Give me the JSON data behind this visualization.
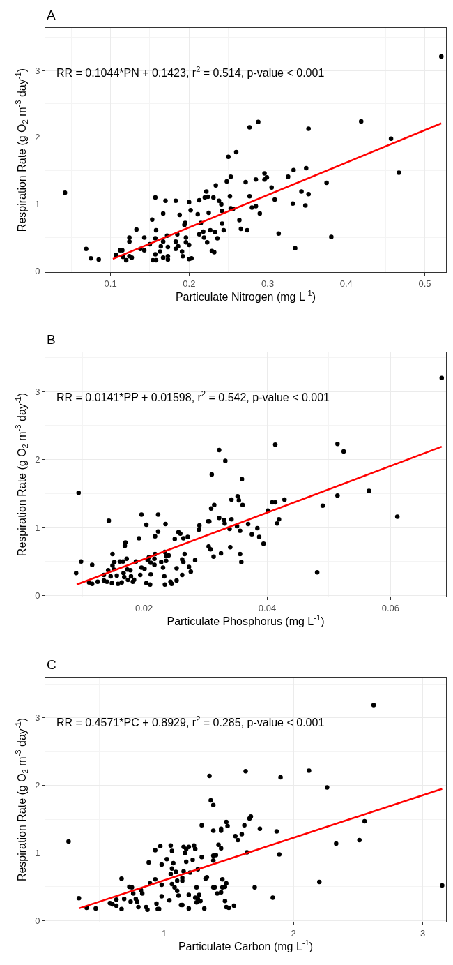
{
  "chart_data": [
    {
      "type": "scatter",
      "title": "A",
      "annotations": [
        "RR = 0.1044*PN + 0.1423, r$^{2}$ = 0.514, p-value < 0.001"
      ],
      "xlabel": "Particulate Nitrogen (mg L$^{-1}$)",
      "ylabel": "Respiration Rate (g O$_{2}$ m$^{-3}$ day$^{-1}$)",
      "xlim": [
        0.017,
        0.527
      ],
      "xticks": [
        0.1,
        0.2,
        0.3,
        0.4,
        0.5
      ],
      "ylim": [
        -0.02,
        3.64
      ],
      "yticks": [
        0,
        1,
        2,
        3
      ],
      "grid": true,
      "series": [
        {
          "marker": "circle",
          "color": "#000000",
          "x": [
            0.042,
            0.069,
            0.075,
            0.085,
            0.107,
            0.112,
            0.115,
            0.116,
            0.12,
            0.124,
            0.127,
            0.124,
            0.124,
            0.133,
            0.138,
            0.143,
            0.143,
            0.15,
            0.153,
            0.154,
            0.158,
            0.157,
            0.158,
            0.157,
            0.157,
            0.164,
            0.163,
            0.167,
            0.167,
            0.17,
            0.172,
            0.173,
            0.167,
            0.173,
            0.173,
            0.183,
            0.183,
            0.185,
            0.183,
            0.186,
            0.188,
            0.191,
            0.192,
            0.194,
            0.195,
            0.196,
            0.196,
            0.2,
            0.2,
            0.203,
            0.2,
            0.202,
            0.211,
            0.213,
            0.215,
            0.213,
            0.218,
            0.219,
            0.222,
            0.22,
            0.224,
            0.231,
            0.225,
            0.223,
            0.227,
            0.229,
            0.232,
            0.233,
            0.236,
            0.234,
            0.238,
            0.241,
            0.242,
            0.242,
            0.244,
            0.248,
            0.25,
            0.252,
            0.253,
            0.253,
            0.256,
            0.26,
            0.264,
            0.266,
            0.272,
            0.274,
            0.277,
            0.277,
            0.288,
            0.28,
            0.285,
            0.29,
            0.285,
            0.296,
            0.296,
            0.299,
            0.305,
            0.309,
            0.314,
            0.326,
            0.333,
            0.332,
            0.335,
            0.343,
            0.348,
            0.349,
            0.352,
            0.352,
            0.375,
            0.381,
            0.419,
            0.457,
            0.467,
            0.521
          ],
          "values": [
            1.17,
            0.33,
            0.19,
            0.17,
            0.24,
            0.31,
            0.31,
            0.21,
            0.16,
            0.22,
            0.2,
            0.5,
            0.44,
            0.62,
            0.33,
            0.5,
            0.31,
            0.4,
            0.77,
            0.16,
            0.16,
            0.49,
            0.61,
            0.25,
            1.1,
            0.37,
            0.29,
            0.44,
            0.86,
            1.05,
            0.53,
            0.36,
            0.2,
            0.17,
            0.22,
            1.05,
            0.44,
            0.55,
            0.33,
            0.37,
            0.84,
            0.29,
            0.22,
            0.69,
            0.72,
            0.5,
            0.43,
            0.39,
            0.18,
            0.19,
            1.03,
            0.91,
            0.85,
            1.06,
            0.72,
            0.55,
            0.59,
            0.5,
            1.19,
            1.1,
            1.11,
            1.1,
            0.87,
            0.43,
            0.61,
            0.3,
            0.28,
            0.58,
            0.49,
            1.28,
            1.05,
            1.0,
            0.9,
            0.71,
            0.61,
            1.34,
            1.71,
            1.12,
            1.41,
            0.94,
            0.93,
            1.78,
            0.76,
            0.63,
            1.33,
            0.61,
            2.15,
            1.12,
            2.23,
            0.95,
            0.97,
            0.86,
            1.37,
            1.46,
            1.37,
            1.4,
            1.25,
            1.07,
            0.56,
            1.41,
            1.51,
            1.01,
            0.34,
            1.19,
            0.98,
            1.54,
            2.13,
            1.15,
            1.32,
            0.51,
            2.24,
            1.98,
            1.47,
            3.21
          ]
        },
        {
          "type": "line",
          "marker": "none",
          "color": "#ff0000",
          "line_style": "solid",
          "x": [
            0.103,
            0.521
          ],
          "values": [
            0.18,
            2.21
          ]
        }
      ]
    },
    {
      "type": "scatter",
      "title": "B",
      "annotations": [
        "RR = 0.0141*PP + 0.01598, r$^{2}$ = 0.542, p-value < 0.001"
      ],
      "xlabel": "Particulate Phosphorus (mg L$^{-1}$)",
      "ylabel": "Respiration Rate (g O$_{2}$ m$^{-3}$ day$^{-1}$)",
      "xlim": [
        0.004,
        0.069
      ],
      "xticks": [
        0.02,
        0.04,
        0.06
      ],
      "ylim": [
        -0.02,
        3.58
      ],
      "yticks": [
        0,
        1,
        2,
        3
      ],
      "grid": true,
      "series": [
        {
          "marker": "circle",
          "color": "#000000",
          "x": [
            0.009,
            0.0094,
            0.0098,
            0.0111,
            0.0116,
            0.0116,
            0.0125,
            0.0135,
            0.0135,
            0.014,
            0.0142,
            0.0143,
            0.0146,
            0.0148,
            0.0149,
            0.0149,
            0.0152,
            0.0151,
            0.0156,
            0.0158,
            0.0161,
            0.0164,
            0.0166,
            0.0167,
            0.0168,
            0.0169,
            0.017,
            0.0172,
            0.0173,
            0.0174,
            0.0178,
            0.0179,
            0.0182,
            0.0184,
            0.0187,
            0.0192,
            0.0194,
            0.0196,
            0.0196,
            0.0201,
            0.0204,
            0.0204,
            0.0206,
            0.0208,
            0.021,
            0.0211,
            0.0211,
            0.0217,
            0.0217,
            0.0218,
            0.0218,
            0.0223,
            0.0223,
            0.0228,
            0.0231,
            0.0233,
            0.0234,
            0.0234,
            0.0236,
            0.0236,
            0.0235,
            0.024,
            0.0243,
            0.0245,
            0.025,
            0.0253,
            0.0253,
            0.0256,
            0.0259,
            0.0262,
            0.0262,
            0.0264,
            0.0264,
            0.0266,
            0.0271,
            0.0273,
            0.0276,
            0.0283,
            0.0289,
            0.029,
            0.0304,
            0.0306,
            0.0305,
            0.0308,
            0.0313,
            0.0309,
            0.0314,
            0.031,
            0.0322,
            0.0332,
            0.0322,
            0.0325,
            0.033,
            0.0331,
            0.0339,
            0.034,
            0.0342,
            0.0342,
            0.0352,
            0.0354,
            0.0351,
            0.0356,
            0.0359,
            0.036,
            0.0356,
            0.0358,
            0.0369,
            0.0384,
            0.0387,
            0.0394,
            0.0375,
            0.0401,
            0.0408,
            0.0413,
            0.0413,
            0.0416,
            0.0419,
            0.0428,
            0.0481,
            0.049,
            0.0514,
            0.0524,
            0.0514,
            0.0565,
            0.0611,
            0.0683
          ],
          "values": [
            0.33,
            1.51,
            0.5,
            0.19,
            0.45,
            0.17,
            0.2,
            0.3,
            0.22,
            0.2,
            0.37,
            1.1,
            0.28,
            0.18,
            0.44,
            0.61,
            0.49,
            0.38,
            0.29,
            0.17,
            0.5,
            0.19,
            0.5,
            0.33,
            0.27,
            0.73,
            0.78,
            0.54,
            0.38,
            0.23,
            0.37,
            0.28,
            0.2,
            0.23,
            0.5,
            0.84,
            0.3,
            1.19,
            0.41,
            0.39,
            1.04,
            0.18,
            0.52,
            0.56,
            0.16,
            0.31,
            0.48,
            0.54,
            0.45,
            0.61,
            0.87,
            1.19,
            0.94,
            0.49,
            0.41,
            0.28,
            0.16,
            0.64,
            0.58,
            0.51,
            1.05,
            0.59,
            0.2,
            0.17,
            0.83,
            0.4,
            0.22,
            0.93,
            0.91,
            0.3,
            0.53,
            0.49,
            0.84,
            0.61,
            0.86,
            0.42,
            0.35,
            0.52,
            0.97,
            1.03,
            1.09,
            1.09,
            0.72,
            0.68,
            0.57,
            1.28,
            1.33,
            1.78,
            2.14,
            1.98,
            1.14,
            0.62,
            1.11,
            1.06,
            0.98,
            0.71,
            1.41,
            1.12,
            1.46,
            1.4,
            1.02,
            0.95,
            1.71,
            1.33,
            0.61,
            0.49,
            1.05,
            0.99,
            0.86,
            0.76,
            0.9,
            1.25,
            1.37,
            1.37,
            2.22,
            1.06,
            1.12,
            1.41,
            0.34,
            1.32,
            2.23,
            2.12,
            1.47,
            1.54,
            1.16,
            3.2
          ]
        },
        {
          "type": "line",
          "marker": "none",
          "color": "#ff0000",
          "line_style": "solid",
          "x": [
            0.0091,
            0.0683
          ],
          "values": [
            0.16,
            2.19
          ]
        }
      ]
    },
    {
      "type": "scatter",
      "title": "C",
      "annotations": [
        "RR = 0.4571*PC + 0.8929, r$^{2}$ = 0.285, p-value < 0.001"
      ],
      "xlabel": "Particulate Carbon (mg L$^{-1}$)",
      "ylabel": "Respiration Rate (g O$_{2}$ m$^{-3}$ day$^{-1}$)",
      "xlim": [
        0.08,
        3.18
      ],
      "xticks": [
        1,
        2,
        3
      ],
      "ylim": [
        -0.02,
        3.6
      ],
      "yticks": [
        0,
        1,
        2,
        3
      ],
      "grid": true,
      "series": [
        {
          "marker": "circle",
          "color": "#000000",
          "x": [
            0.26,
            0.34,
            0.4,
            0.47,
            0.58,
            0.6,
            0.63,
            0.63,
            0.67,
            0.67,
            0.69,
            0.73,
            0.74,
            0.75,
            0.76,
            0.78,
            0.79,
            0.8,
            0.82,
            0.83,
            0.86,
            0.87,
            0.88,
            0.89,
            0.93,
            0.93,
            0.94,
            0.95,
            0.96,
            0.97,
            0.98,
            0.98,
            0.98,
            1.02,
            1.04,
            1.05,
            1.06,
            1.05,
            1.06,
            1.07,
            1.06,
            1.08,
            1.09,
            1.1,
            1.11,
            1.1,
            1.13,
            1.14,
            1.14,
            1.14,
            1.15,
            1.15,
            1.16,
            1.17,
            1.19,
            1.17,
            1.19,
            1.19,
            1.2,
            1.22,
            1.23,
            1.24,
            1.25,
            1.24,
            1.26,
            1.26,
            1.27,
            1.28,
            1.25,
            1.29,
            1.29,
            1.31,
            1.32,
            1.33,
            1.35,
            1.36,
            1.38,
            1.38,
            1.39,
            1.38,
            1.38,
            1.4,
            1.38,
            1.41,
            1.42,
            1.44,
            1.44,
            1.44,
            1.44,
            1.45,
            1.45,
            1.47,
            1.48,
            1.47,
            1.48,
            1.49,
            1.48,
            1.5,
            1.54,
            1.55,
            1.57,
            1.6,
            1.62,
            1.63,
            1.64,
            1.66,
            1.67,
            1.7,
            1.74,
            1.9,
            1.87,
            1.89,
            1.84,
            2.12,
            2.26,
            2.2,
            2.33,
            2.51,
            2.55,
            2.62,
            3.15
          ],
          "values": [
            1.17,
            0.33,
            0.19,
            0.18,
            0.26,
            0.24,
            0.31,
            0.22,
            0.62,
            0.17,
            0.32,
            0.5,
            0.28,
            0.49,
            0.4,
            0.32,
            0.28,
            0.2,
            0.45,
            0.4,
            0.2,
            0.16,
            0.86,
            0.55,
            1.04,
            0.61,
            0.25,
            0.17,
            0.17,
            1.1,
            0.83,
            0.53,
            0.36,
            0.91,
            0.3,
            1.11,
            1.03,
            0.69,
            0.77,
            0.85,
            0.54,
            0.49,
            0.72,
            0.44,
            0.37,
            0.59,
            0.23,
            0.23,
            0.59,
            0.63,
            1.09,
            0.73,
            1.0,
            1.06,
            1.09,
            0.87,
            0.18,
            0.38,
            0.71,
            0.9,
            1.11,
            1.06,
            0.49,
            0.34,
            0.32,
            0.76,
            0.38,
            0.29,
            0.27,
            0.94,
            1.41,
            0.18,
            0.62,
            0.64,
            2.14,
            1.78,
            1.71,
            0.49,
            0.49,
            1.33,
            0.96,
            0.97,
            0.89,
            0.4,
            1.12,
            1.07,
            0.42,
            1.36,
            1.33,
            0.61,
            0.49,
            0.29,
            0.55,
            0.5,
            1.46,
            1.4,
            0.2,
            0.19,
            0.22,
            1.25,
            1.19,
            1.28,
            1.41,
            2.21,
            1.01,
            1.51,
            1.54,
            0.49,
            1.36,
            2.12,
            1.32,
            0.98,
            0.34,
            2.22,
            1.97,
            0.57,
            1.14,
            1.19,
            1.47,
            3.19,
            0.52
          ]
        },
        {
          "type": "line",
          "marker": "none",
          "color": "#ff0000",
          "line_style": "solid",
          "x": [
            0.34,
            3.15
          ],
          "values": [
            0.18,
            1.95
          ]
        }
      ]
    }
  ]
}
